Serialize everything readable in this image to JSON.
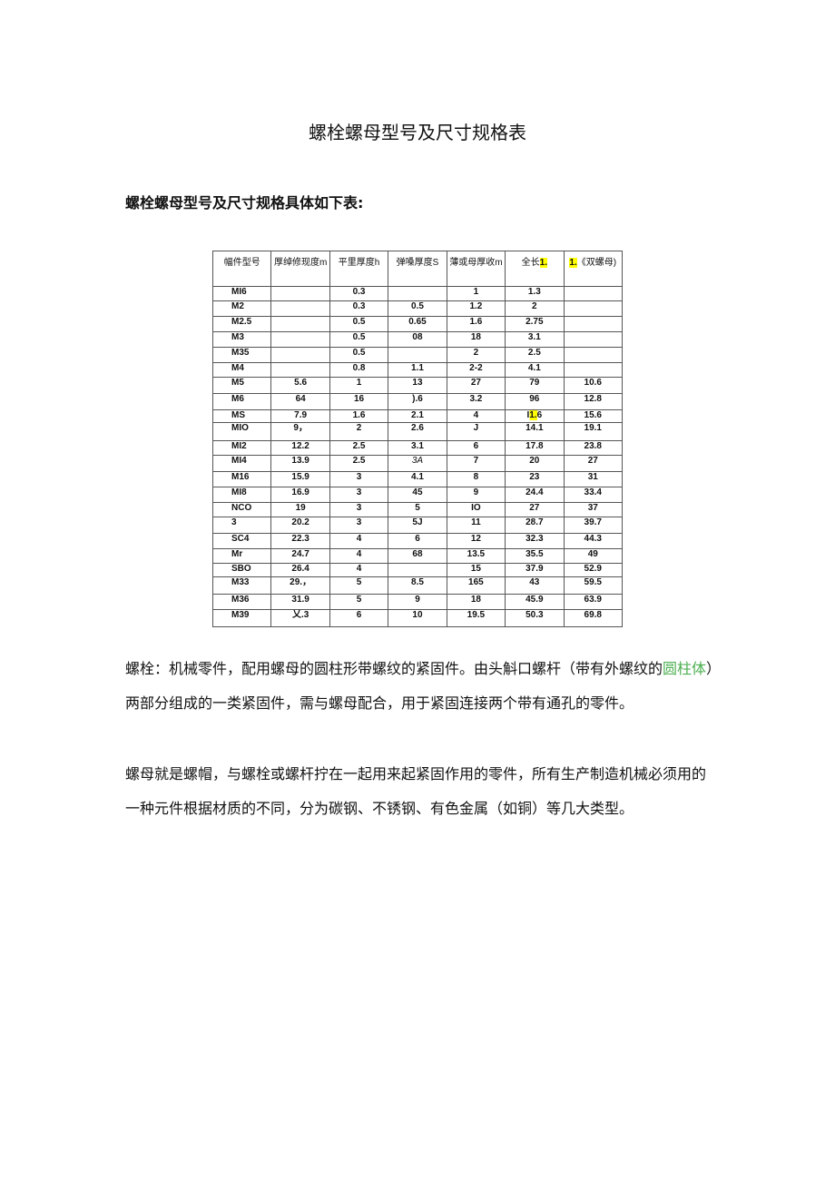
{
  "title": "螺栓螺母型号及尺寸规格表",
  "subtitle": "螺栓螺母型号及尺寸规格具体如下表:",
  "table": {
    "headers": [
      "幅件型号",
      "厚绰修现度m",
      "平里厚度h",
      "弹嗓厚度S",
      "薄或母厚收m",
      "全长",
      "《双螺母)"
    ],
    "header_highlights": {
      "col5": "1.",
      "col6": "1."
    },
    "rows": [
      [
        "MI6",
        "",
        "0.3",
        "",
        "1",
        "1.3",
        ""
      ],
      [
        "M2",
        "",
        "0.3",
        "0.5",
        "1.2",
        "2",
        ""
      ],
      [
        "M2.5",
        "",
        "0.5",
        "0.65",
        "1.6",
        "2.75",
        ""
      ],
      [
        "M3",
        "",
        "0.5",
        "08",
        "18",
        "3.1",
        ""
      ],
      [
        "M35",
        "",
        "0.5",
        "",
        "2",
        "2.5",
        ""
      ],
      [
        "M4",
        "",
        "0.8",
        "1.1",
        "2-2",
        "4.1",
        ""
      ],
      [
        "M5",
        "5.6",
        "1",
        "13",
        "27",
        "79",
        "10.6"
      ],
      [
        "M6",
        "64",
        "16",
        ").6",
        "3.2",
        "96",
        "12.8"
      ],
      [
        "MS",
        "7.9",
        "1.6",
        "2.1",
        "4",
        "I1.6",
        "15.6"
      ],
      [
        "MIO",
        "9，",
        "2",
        "2.6",
        "J",
        "14.1",
        "19.1"
      ],
      [
        "MI2",
        "12.2",
        "2.5",
        "3.1",
        "6",
        "17.8",
        "23.8"
      ],
      [
        "MI4",
        "13.9",
        "2.5",
        "3A",
        "7",
        "20",
        "27"
      ],
      [
        "M16",
        "15.9",
        "3",
        "4.1",
        "8",
        "23",
        "31"
      ],
      [
        "MI8",
        "16.9",
        "3",
        "45",
        "9",
        "24.4",
        "33.4"
      ],
      [
        "NCO",
        "19",
        "3",
        "5",
        "IO",
        "27",
        "37"
      ],
      [
        "3",
        "20.2",
        "3",
        "5J",
        "11",
        "28.7",
        "39.7"
      ],
      [
        "SC4",
        "22.3",
        "4",
        "6",
        "12",
        "32.3",
        "44.3"
      ],
      [
        "Mr",
        "24.7",
        "4",
        "68",
        "13.5",
        "35.5",
        "49"
      ],
      [
        "SBO",
        "26.4",
        "4",
        "",
        "15",
        "37.9",
        "52.9"
      ],
      [
        "M33",
        "29.，",
        "5",
        "8.5",
        "165",
        "43",
        "59.5"
      ],
      [
        "M36",
        "31.9",
        "5",
        "9",
        "18",
        "45.9",
        "63.9"
      ],
      [
        "M39",
        "乂.3",
        "6",
        "10",
        "19.5",
        "50.3",
        "69.8"
      ]
    ]
  },
  "para1": {
    "a": "螺栓：机械零件，配用螺母的圆柱形带螺纹的紧固件。由头斛口螺杆（带有外螺纹的",
    "link": "圆柱体",
    "b": "）两部分组成的一类紧固件，需与螺母配合，用于紧固连接两个带有通孔的零件。"
  },
  "para2": "螺母就是螺帽，与螺栓或螺杆拧在一起用来起紧固作用的零件，所有生产制造机械必须用的一种元件根据材质的不同，分为碳钢、不锈钢、有色金属（如铜）等几大类型。",
  "colors": {
    "highlight": "#ffff00",
    "link": "#4caf50"
  }
}
